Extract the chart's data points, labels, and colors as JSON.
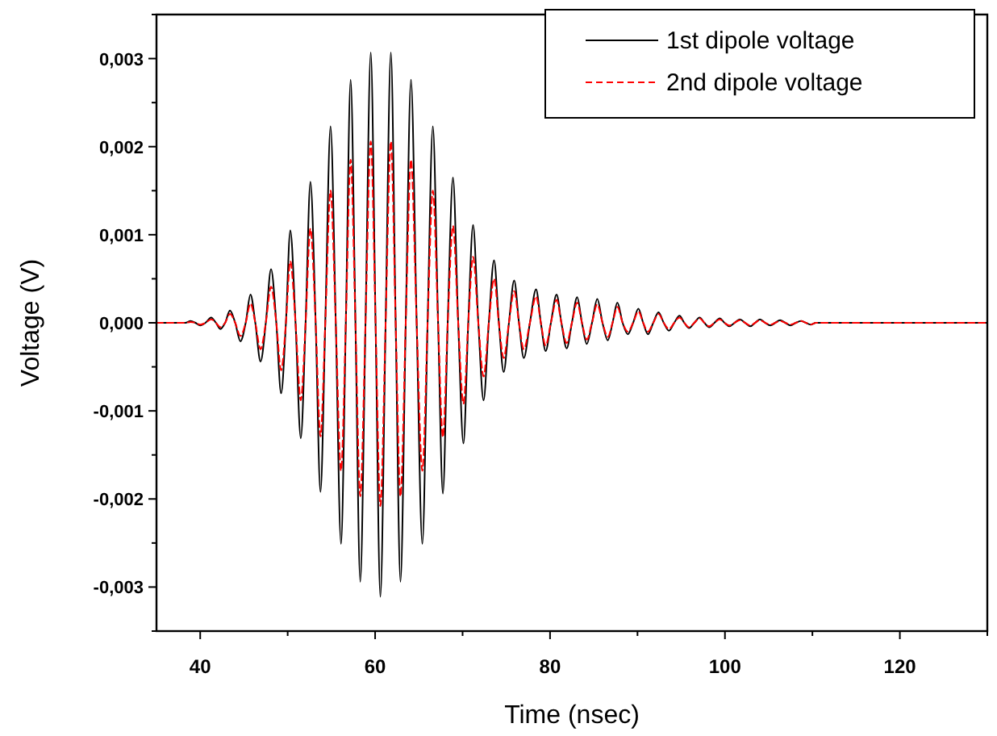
{
  "chart_data": {
    "type": "line",
    "xlabel": "Time (nsec)",
    "ylabel": "Voltage (V)",
    "xlim": [
      35,
      130
    ],
    "xticks": [
      40,
      {
        "value": 50,
        "label": null
      },
      60,
      {
        "value": 70,
        "label": null
      },
      80,
      {
        "value": 90,
        "label": null
      },
      100,
      {
        "value": 110,
        "label": null
      },
      120,
      {
        "value": 130,
        "label": null
      }
    ],
    "ylim": [
      -0.0035,
      0.0035
    ],
    "yticks": [
      {
        "value": -0.0035,
        "label": null
      },
      {
        "value": -0.003,
        "label": "-0,003"
      },
      {
        "value": -0.0025,
        "label": null
      },
      {
        "value": -0.002,
        "label": "-0,002"
      },
      {
        "value": -0.0015,
        "label": null
      },
      {
        "value": -0.001,
        "label": "-0,001"
      },
      {
        "value": -0.0005,
        "label": null
      },
      {
        "value": 0,
        "label": "0,000"
      },
      {
        "value": 0.0005,
        "label": null
      },
      {
        "value": 0.001,
        "label": "0,001"
      },
      {
        "value": 0.0015,
        "label": null
      },
      {
        "value": 0.002,
        "label": "0,002"
      },
      {
        "value": 0.0025,
        "label": null
      },
      {
        "value": 0.003,
        "label": "0,003"
      },
      {
        "value": 0.0035,
        "label": null
      }
    ],
    "grid": false,
    "legend": "top right",
    "marker": "none",
    "x": [
      35,
      37,
      38.3,
      38.9,
      39.45,
      40.0,
      40.6,
      41.25,
      41.8,
      42.3,
      42.85,
      43.4,
      44.0,
      44.6,
      45.2,
      45.75,
      46.3,
      46.9,
      47.5,
      48.1,
      48.7,
      49.25,
      49.8,
      50.3,
      50.9,
      51.5,
      52.05,
      52.6,
      53.2,
      53.75,
      54.3,
      54.9,
      55.5,
      56.1,
      56.65,
      57.2,
      57.75,
      58.3,
      58.9,
      59.5,
      60.05,
      60.6,
      61.2,
      61.8,
      62.35,
      62.9,
      63.5,
      64.1,
      64.75,
      65.4,
      66.0,
      66.6,
      67.2,
      67.75,
      68.3,
      68.9,
      69.5,
      70.1,
      70.65,
      71.2,
      71.8,
      72.4,
      73.0,
      73.6,
      74.15,
      74.7,
      75.3,
      75.9,
      76.45,
      77.0,
      77.7,
      78.4,
      78.95,
      79.5,
      80.1,
      80.75,
      81.3,
      81.9,
      82.5,
      83.1,
      83.65,
      84.2,
      84.8,
      85.4,
      86.0,
      86.6,
      87.15,
      87.7,
      88.3,
      88.9,
      89.5,
      90.1,
      90.65,
      91.2,
      91.8,
      92.4,
      93.0,
      93.6,
      94.2,
      94.8,
      95.35,
      95.9,
      96.5,
      97.1,
      97.65,
      98.2,
      98.8,
      99.4,
      99.95,
      100.5,
      101.1,
      101.7,
      102.3,
      102.9,
      103.45,
      104.0,
      104.6,
      105.2,
      105.75,
      106.3,
      106.9,
      107.5,
      108.1,
      108.7,
      109.25,
      109.8,
      110.4,
      130
    ],
    "series": [
      {
        "name": "1st dipole voltage",
        "color": "#000000",
        "line_style": "solid",
        "values": [
          0,
          0,
          0,
          2e-05,
          0,
          -3e-05,
          0,
          6e-05,
          0,
          -7e-05,
          0,
          0.00014,
          0,
          -0.00021,
          0,
          0.00032,
          0,
          -0.00044,
          0,
          0.00061,
          0,
          -0.0008,
          0,
          0.00105,
          0,
          -0.00131,
          0,
          0.0016,
          0,
          -0.00192,
          0,
          0.00223,
          0,
          -0.00251,
          0,
          0.00276,
          0,
          -0.00294,
          0,
          0.00307,
          0,
          -0.00311,
          0,
          0.00307,
          0,
          -0.00294,
          0,
          0.00276,
          0,
          -0.00251,
          0,
          0.00223,
          0,
          -0.00194,
          0,
          0.00165,
          0,
          -0.00137,
          0,
          0.00111,
          0,
          -0.00088,
          0,
          0.00071,
          0,
          -0.00056,
          0,
          0.00048,
          0,
          -0.0004,
          0,
          0.00038,
          0,
          -0.00032,
          0,
          0.00032,
          0,
          -0.00029,
          0,
          0.00029,
          0,
          -0.00024,
          0,
          0.00027,
          0,
          -0.0002,
          0,
          0.00023,
          0,
          -0.00013,
          0,
          0.00016,
          0,
          -0.00013,
          0,
          0.00012,
          0,
          -9e-05,
          0,
          8e-05,
          0,
          -6e-05,
          0,
          6e-05,
          0,
          -5e-05,
          0,
          5e-05,
          0,
          -4e-05,
          0,
          4e-05,
          0,
          -4e-05,
          0,
          4e-05,
          0,
          -3e-05,
          0,
          3e-05,
          0,
          -3e-05,
          0,
          2e-05,
          0,
          -2e-05,
          0,
          0
        ]
      },
      {
        "name": "2nd dipole voltage",
        "color": "#ff0000",
        "line_style": "dashed",
        "values": [
          0,
          0,
          0,
          1e-05,
          0,
          -2e-05,
          0,
          4e-05,
          0,
          -5e-05,
          0,
          0.0001,
          0,
          -0.00015,
          0,
          0.00022,
          0,
          -0.0003,
          0,
          0.00041,
          0,
          -0.00054,
          0,
          0.0007,
          0,
          -0.00088,
          0,
          0.00107,
          0,
          -0.00129,
          0,
          0.0015,
          0,
          -0.00168,
          0,
          0.00185,
          0,
          -0.00197,
          0,
          0.00206,
          0,
          -0.00208,
          0,
          0.00206,
          0,
          -0.00197,
          0,
          0.00185,
          0,
          -0.00168,
          0,
          0.0015,
          0,
          -0.0013,
          0,
          0.0011,
          0,
          -0.00092,
          0,
          0.00075,
          0,
          -0.00061,
          0,
          0.0005,
          0,
          -0.0004,
          0,
          0.00036,
          0,
          -0.0003,
          0,
          0.0003,
          0,
          -0.00026,
          0,
          0.00026,
          0,
          -0.00023,
          0,
          0.00023,
          0,
          -0.00019,
          0,
          0.00021,
          0,
          -0.00016,
          0,
          0.00018,
          0,
          -0.0001,
          0,
          0.00013,
          0,
          -0.0001,
          0,
          0.0001,
          0,
          -7e-05,
          0,
          6e-05,
          0,
          -5e-05,
          0,
          5e-05,
          0,
          -4e-05,
          0,
          4e-05,
          0,
          -3e-05,
          0,
          3e-05,
          0,
          -3e-05,
          0,
          3e-05,
          0,
          -2e-05,
          0,
          2e-05,
          0,
          -2e-05,
          0,
          2e-05,
          0,
          -2e-05,
          0,
          0
        ]
      }
    ]
  }
}
